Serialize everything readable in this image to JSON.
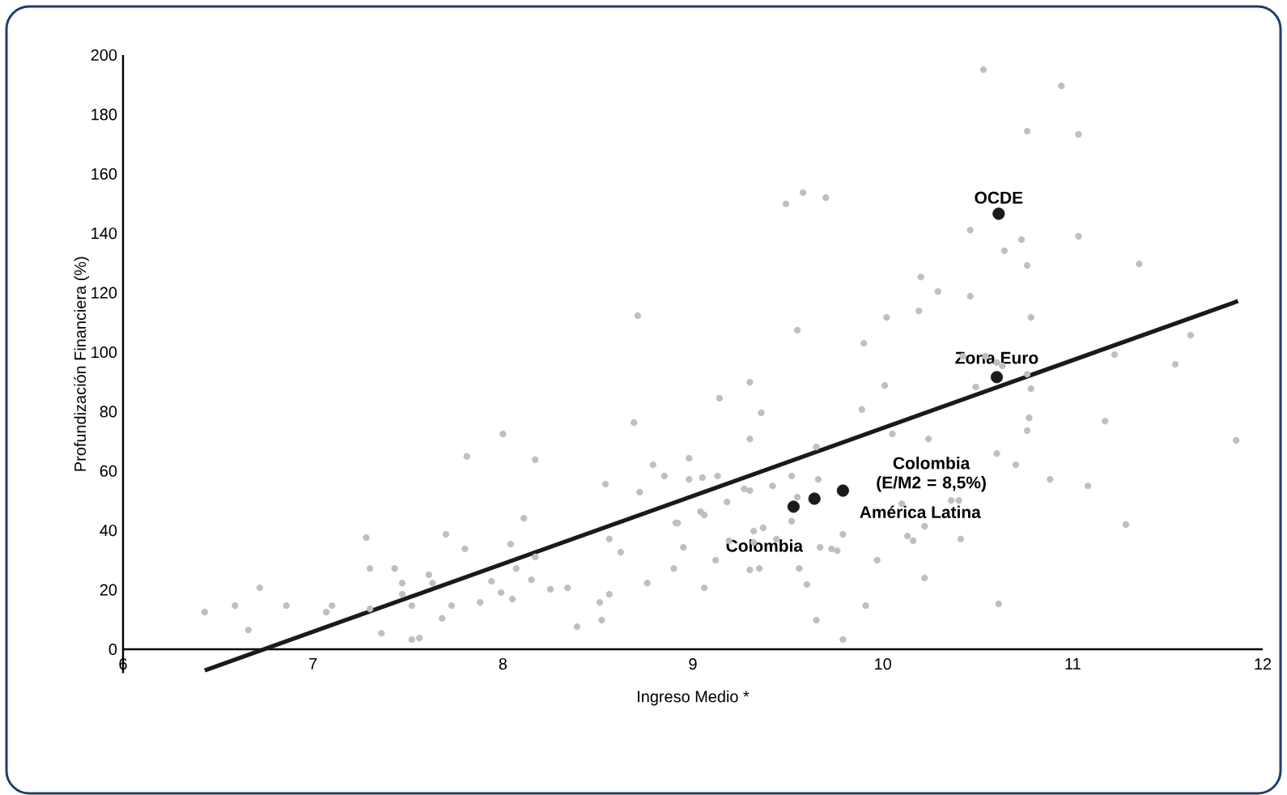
{
  "chart_data": {
    "type": "scatter",
    "xlabel": "Ingreso Medio *",
    "ylabel": "Profundización Financiera (%)",
    "xlim": [
      6,
      12
    ],
    "ylim": [
      -8,
      200
    ],
    "xticks": [
      6,
      7,
      8,
      9,
      10,
      11,
      12
    ],
    "yticks": [
      0,
      20,
      40,
      60,
      80,
      100,
      120,
      140,
      160,
      180,
      200
    ],
    "grid": false,
    "series": [
      {
        "color": "#bfbfbf",
        "marker": "circle",
        "x": [
          6.43,
          6.59,
          6.66,
          6.72,
          6.86,
          7.07,
          7.1,
          7.28,
          7.3,
          7.43,
          7.47,
          7.47,
          7.52,
          7.3,
          7.36,
          7.52,
          7.56,
          7.61,
          7.63,
          7.7,
          7.8,
          7.73,
          7.68,
          7.81,
          7.88,
          8.0,
          8.04,
          7.94,
          7.99,
          8.05,
          8.07,
          8.17,
          8.11,
          8.17,
          8.15,
          8.25,
          8.34,
          8.39,
          8.51,
          8.52,
          8.54,
          8.56,
          8.56,
          8.62,
          8.69,
          8.71,
          8.72,
          8.76,
          8.79,
          8.85,
          8.9,
          8.91,
          8.92,
          8.95,
          8.98,
          8.98,
          9.04,
          9.06,
          9.05,
          9.06,
          9.12,
          9.13,
          9.14,
          9.18,
          9.19,
          9.27,
          9.3,
          9.3,
          9.3,
          9.3,
          9.32,
          9.32,
          9.35,
          9.36,
          9.37,
          9.42,
          9.44,
          9.49,
          9.52,
          9.52,
          9.55,
          9.55,
          9.56,
          9.58,
          9.6,
          9.65,
          9.65,
          9.66,
          9.67,
          9.7,
          9.73,
          9.76,
          9.79,
          9.79,
          9.89,
          9.9,
          9.91,
          9.97,
          10.01,
          10.02,
          10.05,
          10.1,
          10.13,
          10.16,
          10.19,
          10.2,
          10.22,
          10.22,
          10.24,
          10.29,
          10.36,
          10.4,
          10.41,
          10.42,
          10.46,
          10.46,
          10.49,
          10.53,
          10.54,
          10.6,
          10.63,
          10.6,
          10.61,
          10.64,
          10.7,
          10.73,
          10.76,
          10.76,
          10.76,
          10.76,
          10.77,
          10.78,
          10.78,
          10.88,
          10.94,
          11.03,
          11.03,
          11.08,
          11.17,
          11.22,
          11.28,
          11.35,
          11.54,
          11.62,
          11.86
        ],
        "values": [
          12.5,
          14.7,
          6.5,
          20.7,
          14.7,
          12.5,
          14.7,
          37.6,
          27.2,
          27.2,
          22.3,
          18.5,
          14.7,
          13.6,
          5.4,
          3.3,
          3.8,
          25.1,
          22.3,
          38.7,
          33.8,
          14.7,
          10.4,
          64.9,
          15.8,
          72.5,
          35.4,
          22.9,
          19.1,
          16.9,
          27.2,
          63.8,
          44.1,
          31.1,
          23.4,
          20.2,
          20.7,
          7.6,
          15.8,
          9.8,
          55.6,
          37.1,
          18.5,
          32.7,
          76.3,
          112.3,
          52.9,
          22.3,
          62.1,
          58.3,
          27.2,
          42.5,
          42.5,
          34.3,
          64.3,
          57.2,
          46.3,
          45.2,
          57.8,
          20.7,
          30.0,
          58.3,
          84.5,
          49.6,
          36.5,
          54.0,
          89.9,
          70.8,
          53.4,
          26.7,
          39.8,
          36.0,
          27.2,
          79.6,
          40.9,
          55.0,
          37.1,
          149.9,
          58.3,
          43.1,
          107.4,
          51.2,
          27.2,
          153.7,
          21.8,
          68.1,
          9.8,
          57.2,
          34.3,
          152.0,
          33.8,
          33.2,
          38.7,
          3.3,
          80.7,
          103.0,
          14.7,
          30.0,
          88.8,
          111.7,
          72.5,
          49.0,
          38.1,
          36.5,
          113.9,
          125.3,
          41.4,
          24.0,
          70.8,
          120.4,
          50.1,
          50.1,
          37.1,
          98.6,
          141.1,
          118.8,
          88.3,
          195.1,
          98.6,
          96.5,
          95.4,
          65.9,
          15.3,
          134.1,
          62.1,
          137.9,
          174.4,
          129.2,
          92.6,
          73.6,
          77.9,
          111.7,
          87.7,
          57.2,
          189.6,
          173.3,
          139.0,
          55.0,
          76.8,
          99.2,
          42.0,
          129.7,
          95.9,
          105.7,
          70.3
        ]
      },
      {
        "color": "#1a1a1a",
        "marker": "circle",
        "x": [
          9.53,
          9.64,
          9.79,
          10.6,
          10.61
        ],
        "values": [
          48,
          50.7,
          53.4,
          91.6,
          146.6
        ]
      },
      {
        "type": "line",
        "color": "#1a1a1a",
        "x": [
          6.43,
          11.87
        ],
        "values": [
          -7.1,
          117.2
        ]
      }
    ],
    "annotations": [
      {
        "text": "OCDE",
        "x": 10.61,
        "y": 146.6
      },
      {
        "text": "Zona Euro",
        "x": 10.6,
        "y": 91.6
      },
      "Colombia (E/M2 = 8,5%)",
      {
        "text": "América Latina",
        "x": 9.79,
        "y": 53.4
      },
      {
        "text": "Colombia",
        "x": 9.53,
        "y": 48
      }
    ]
  }
}
